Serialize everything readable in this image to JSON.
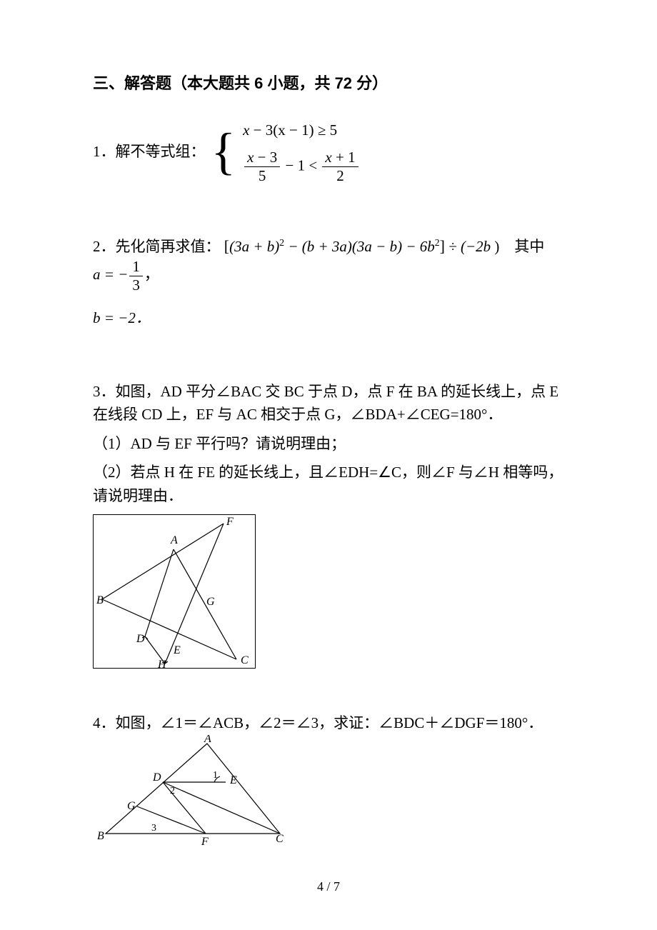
{
  "section_title": "三、解答题（本大题共 6 小题，共 72 分）",
  "q1": {
    "lead": "1．解不等式组：",
    "line1": {
      "lhs_var": "x",
      "expr": "− 3(x − 1) ≥ 5"
    },
    "line2": {
      "f1_num_l": "x",
      "f1_num_r": "− 3",
      "f1_den": "5",
      "mid": "− 1 <",
      "f2_num_l": "x",
      "f2_num_r": "+ 1",
      "f2_den": "2"
    }
  },
  "q2": {
    "lead": "2．先化简再求值：",
    "bracket_open": "[",
    "expr1": "(3a + b)",
    "sup1": "2",
    "expr2": " − (b + 3a)(3a − b) − 6b",
    "sup2": "2",
    "bracket_close": "]",
    "expr3": " ÷ (−2b",
    "expr3_close": ")",
    "where_prefix": "其中 ",
    "where_a": "a = −",
    "frac_a_num": "1",
    "frac_a_den": "3",
    "comma": "，",
    "where_b": "b = −2．"
  },
  "q3": {
    "p1": "3．如图，AD 平分∠BAC 交 BC 于点 D，点 F 在 BA 的延长线上，点 E 在线段 CD 上，EF 与 AC 相交于点 G，∠BDA+∠CEG=180°．",
    "p2": "（1）AD 与 EF 平行吗？请说明理由；",
    "p3": "（2）若点 H 在 FE 的延长线上，且∠EDH=∠C，则∠F 与∠H 相等吗，请说明理由．",
    "labels": {
      "A": "A",
      "B": "B",
      "C": "C",
      "D": "D",
      "E": "E",
      "F": "F",
      "G": "G",
      "H": "H"
    },
    "stroke": "#000000",
    "label_font": "italic 16px 'Times New Roman', serif",
    "label_font_upright": "16px 'Times New Roman', serif"
  },
  "q4": {
    "p1": "4．如图，∠1＝∠ACB，∠2＝∠3，求证：∠BDC＋∠DGF＝180°．",
    "labels": {
      "A": "A",
      "B": "B",
      "C": "C",
      "D": "D",
      "E": "E",
      "F": "F",
      "G": "G",
      "n1": "1",
      "n2": "2",
      "n3": "3"
    },
    "stroke": "#000000",
    "label_font": "italic 16px 'Times New Roman', serif",
    "num_font": "14px 'Times New Roman', serif"
  },
  "footer": {
    "page": "4",
    "sep": " / ",
    "total": "7"
  }
}
